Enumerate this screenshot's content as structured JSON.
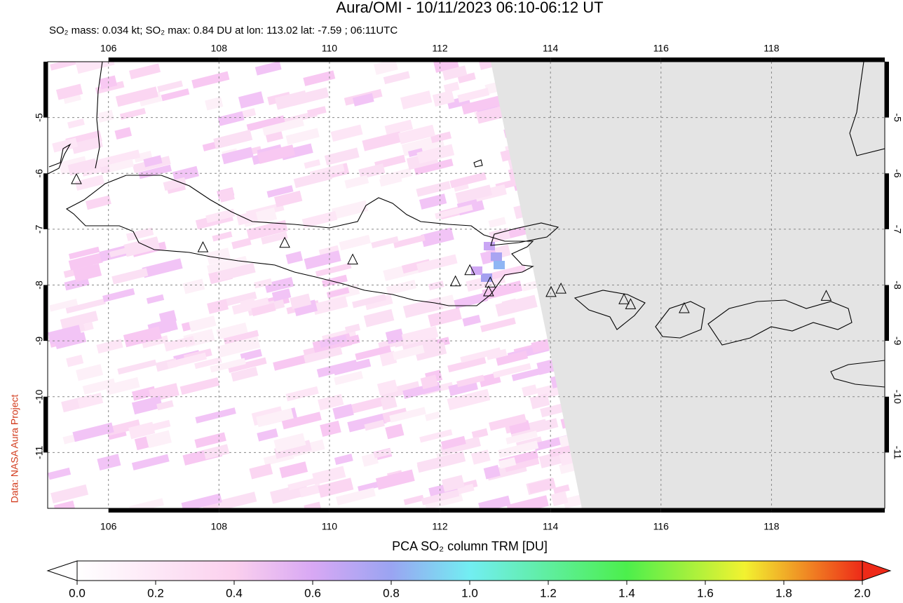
{
  "title": "Aura/OMI - 10/11/2023 06:10-06:12 UT",
  "subtitle": "SO₂ mass: 0.034 kt; SO₂ max: 0.84 DU at lon: 113.02 lat: -7.59 ; 06:11UTC",
  "credit": "Data: NASA Aura Project",
  "map": {
    "xlim": [
      104.9,
      120.05
    ],
    "ylim": [
      -12,
      -4
    ],
    "xticks": [
      106,
      108,
      110,
      112,
      114,
      116,
      118
    ],
    "yticks": [
      -5,
      -6,
      -7,
      -8,
      -9,
      -10,
      -11
    ],
    "volcanoes": [
      [
        105.42,
        -6.11
      ],
      [
        107.71,
        -7.33
      ],
      [
        109.19,
        -7.25
      ],
      [
        110.42,
        -7.55
      ],
      [
        112.28,
        -7.94
      ],
      [
        112.54,
        -7.74
      ],
      [
        112.91,
        -7.96
      ],
      [
        112.88,
        -8.12
      ],
      [
        114.01,
        -8.13
      ],
      [
        114.19,
        -8.07
      ],
      [
        115.33,
        -8.26
      ],
      [
        115.45,
        -8.35
      ],
      [
        116.42,
        -8.42
      ],
      [
        118.99,
        -8.2
      ]
    ]
  },
  "colorbar": {
    "label": "PCA SO₂ column TRM [DU]",
    "lim": [
      0,
      2
    ],
    "ticks": [
      {
        "value": 0,
        "label": "0.0"
      },
      0.2,
      0.4,
      0.6,
      0.8,
      {
        "value": 1,
        "label": "1.0"
      },
      1.2,
      1.4,
      1.6,
      1.8,
      {
        "value": 2,
        "label": "2.0"
      }
    ]
  }
}
